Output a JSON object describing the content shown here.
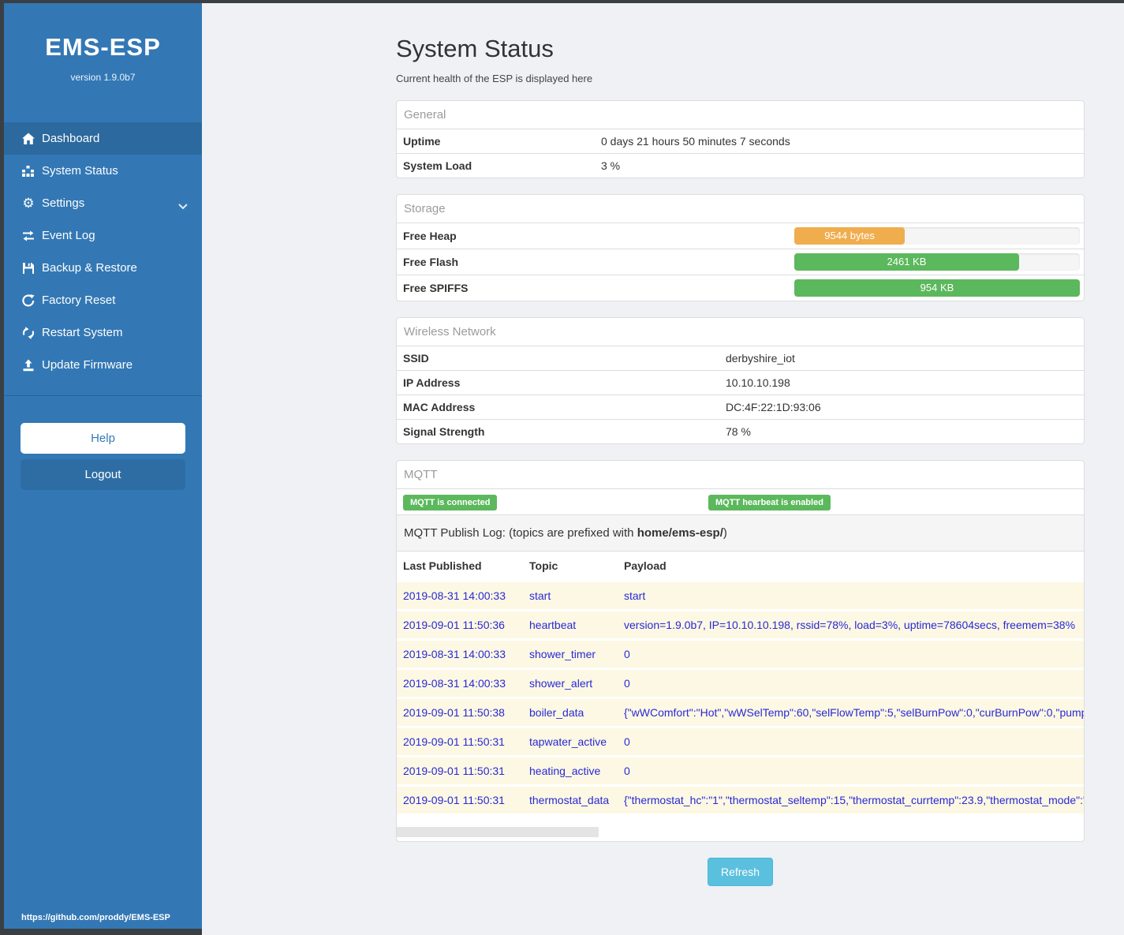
{
  "colors": {
    "sidebar_blue": "#3378b5",
    "sidebar_active_blue": "#2c699e",
    "frame_dark": "#3a3f44",
    "badge_green": "#5cb85c",
    "bar_orange": "#f0ad4e",
    "bar_green": "#5cb85c",
    "refresh_blue": "#5bc0de",
    "log_text_blue": "#2929d6",
    "log_row_yellow": "#fcf8e3"
  },
  "sidebar": {
    "title": "EMS-ESP",
    "version": "version 1.9.0b7",
    "items": [
      {
        "label": "Dashboard",
        "icon": "home-icon",
        "active": true
      },
      {
        "label": "System Status",
        "icon": "chart-icon"
      },
      {
        "label": "Settings",
        "icon": "gear-icon",
        "has_submenu": true
      },
      {
        "label": "Event Log",
        "icon": "exchange-icon"
      },
      {
        "label": "Backup & Restore",
        "icon": "save-icon"
      },
      {
        "label": "Factory Reset",
        "icon": "reset-icon"
      },
      {
        "label": "Restart System",
        "icon": "restart-icon"
      },
      {
        "label": "Update Firmware",
        "icon": "upload-icon"
      }
    ],
    "help_label": "Help",
    "logout_label": "Logout",
    "footer_link": "https://github.com/proddy/EMS-ESP"
  },
  "page": {
    "title": "System Status",
    "subtitle": "Current health of the ESP is displayed here",
    "refresh_label": "Refresh"
  },
  "general": {
    "title": "General",
    "rows": [
      {
        "label": "Uptime",
        "value": "0 days 21 hours 50 minutes 7 seconds"
      },
      {
        "label": "System Load",
        "value": "3 %"
      }
    ]
  },
  "storage": {
    "title": "Storage",
    "rows": [
      {
        "label": "Free Heap",
        "bar_label": "9544 bytes",
        "percent": 38.7,
        "color": "#f0ad4e"
      },
      {
        "label": "Free Flash",
        "bar_label": "2461 KB",
        "percent": 78.7,
        "color": "#5cb85c"
      },
      {
        "label": "Free SPIFFS",
        "bar_label": "954 KB",
        "percent": 100,
        "color": "#5cb85c"
      }
    ]
  },
  "wireless": {
    "title": "Wireless Network",
    "rows": [
      {
        "label": "SSID",
        "value": "derbyshire_iot"
      },
      {
        "label": "IP Address",
        "value": "10.10.10.198"
      },
      {
        "label": "MAC Address",
        "value": "DC:4F:22:1D:93:06"
      },
      {
        "label": "Signal Strength",
        "value": "78 %"
      }
    ]
  },
  "mqtt": {
    "title": "MQTT",
    "badges": [
      {
        "label": "MQTT is connected"
      },
      {
        "label": "MQTT hearbeat is enabled"
      }
    ],
    "log_intro_prefix": "MQTT Publish Log: (topics are prefixed with ",
    "log_intro_bold": "home/ems-esp/",
    "log_intro_suffix": ")",
    "columns": [
      {
        "label": "Last Published"
      },
      {
        "label": "Topic"
      },
      {
        "label": "Payload"
      }
    ],
    "rows": [
      {
        "time": "2019-08-31 14:00:33",
        "topic": "start",
        "payload": "start"
      },
      {
        "time": "2019-09-01 11:50:36",
        "topic": "heartbeat",
        "payload": "version=1.9.0b7, IP=10.10.10.198, rssid=78%, load=3%, uptime=78604secs, freemem=38%"
      },
      {
        "time": "2019-08-31 14:00:33",
        "topic": "shower_timer",
        "payload": "0"
      },
      {
        "time": "2019-08-31 14:00:33",
        "topic": "shower_alert",
        "payload": "0"
      },
      {
        "time": "2019-09-01 11:50:38",
        "topic": "boiler_data",
        "payload": "{\"wWComfort\":\"Hot\",\"wWSelTemp\":60,\"selFlowTemp\":5,\"selBurnPow\":0,\"curBurnPow\":0,\"pump"
      },
      {
        "time": "2019-09-01 11:50:31",
        "topic": "tapwater_active",
        "payload": "0"
      },
      {
        "time": "2019-09-01 11:50:31",
        "topic": "heating_active",
        "payload": "0"
      },
      {
        "time": "2019-09-01 11:50:31",
        "topic": "thermostat_data",
        "payload": "{\"thermostat_hc\":\"1\",\"thermostat_seltemp\":15,\"thermostat_currtemp\":23.9,\"thermostat_mode\":\""
      }
    ]
  }
}
